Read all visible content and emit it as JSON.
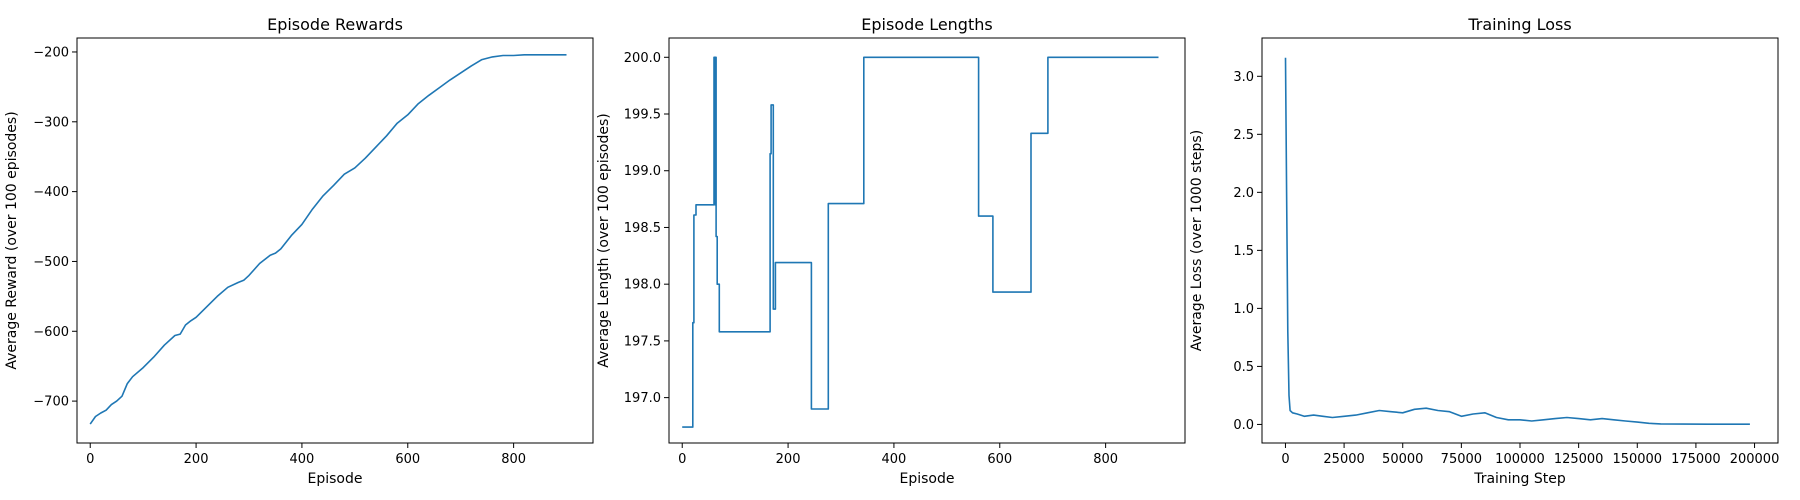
{
  "chart_data": [
    {
      "type": "line",
      "title": "Episode Rewards",
      "xlabel": "Episode",
      "ylabel": "Average Reward (over 100 episodes)",
      "xlim": [
        -25,
        950
      ],
      "ylim": [
        -760,
        -180
      ],
      "xticks": [
        0,
        200,
        400,
        600,
        800
      ],
      "yticks": [
        -700,
        -600,
        -500,
        -400,
        -300,
        -200
      ],
      "xtick_labels": [
        "0",
        "200",
        "400",
        "600",
        "800"
      ],
      "ytick_labels": [
        "−700",
        "−600",
        "−500",
        "−400",
        "−300",
        "−200"
      ],
      "grid": false,
      "color": "#1f77b4",
      "series": [
        {
          "x": [
            0,
            10,
            20,
            30,
            40,
            50,
            60,
            70,
            80,
            100,
            120,
            140,
            160,
            170,
            180,
            190,
            200,
            220,
            240,
            260,
            280,
            290,
            300,
            320,
            340,
            350,
            360,
            380,
            400,
            420,
            440,
            460,
            480,
            500,
            520,
            540,
            560,
            580,
            600,
            620,
            640,
            660,
            680,
            700,
            720,
            740,
            760,
            780,
            800,
            820,
            840,
            860,
            880,
            900
          ],
          "y": [
            -733,
            -722,
            -717,
            -713,
            -705,
            -700,
            -693,
            -675,
            -665,
            -652,
            -637,
            -620,
            -606,
            -604,
            -591,
            -585,
            -580,
            -565,
            -550,
            -537,
            -530,
            -527,
            -520,
            -503,
            -491,
            -488,
            -482,
            -463,
            -447,
            -425,
            -406,
            -391,
            -375,
            -366,
            -352,
            -336,
            -320,
            -302,
            -290,
            -274,
            -262,
            -251,
            -240,
            -230,
            -220,
            -211,
            -207,
            -205,
            -205,
            -204,
            -204,
            -204,
            -204,
            -204
          ]
        }
      ]
    },
    {
      "type": "line",
      "title": "Episode Lengths",
      "xlabel": "Episode",
      "ylabel": "Average Length (over 100 episodes)",
      "xlim": [
        -25,
        950
      ],
      "ylim": [
        196.6,
        200.17
      ],
      "xticks": [
        0,
        200,
        400,
        600,
        800
      ],
      "yticks": [
        197.0,
        197.5,
        198.0,
        198.5,
        199.0,
        199.5,
        200.0
      ],
      "xtick_labels": [
        "0",
        "200",
        "400",
        "600",
        "800"
      ],
      "ytick_labels": [
        "197.0",
        "197.5",
        "198.0",
        "198.5",
        "199.0",
        "199.5",
        "200.0"
      ],
      "grid": false,
      "color": "#1f77b4",
      "series": [
        {
          "x": [
            0,
            20,
            20,
            22,
            22,
            26,
            26,
            60,
            60,
            62,
            62,
            63,
            63,
            64,
            64,
            66,
            66,
            70,
            70,
            166,
            166,
            168,
            168,
            172,
            172,
            176,
            176,
            177,
            177,
            244,
            244,
            276,
            276,
            343,
            343,
            560,
            560,
            587,
            587,
            659,
            659,
            691,
            691,
            900
          ],
          "y": [
            196.74,
            196.74,
            197.66,
            197.66,
            198.61,
            198.61,
            198.7,
            198.7,
            200.0,
            200.0,
            198.7,
            198.7,
            200.0,
            200.0,
            198.42,
            198.42,
            198.0,
            198.0,
            197.58,
            197.58,
            199.15,
            199.15,
            199.58,
            199.58,
            197.78,
            197.78,
            198.19,
            198.19,
            198.19,
            198.19,
            196.9,
            196.9,
            198.71,
            198.71,
            200.0,
            200.0,
            198.6,
            198.6,
            197.93,
            197.93,
            199.33,
            199.33,
            200.0,
            200.0
          ]
        }
      ]
    },
    {
      "type": "line",
      "title": "Training Loss",
      "xlabel": "Training Step",
      "ylabel": "Average Loss (over 1000 steps)",
      "xlim": [
        -10000,
        210000
      ],
      "ylim": [
        -0.16,
        3.33
      ],
      "xticks": [
        0,
        25000,
        50000,
        75000,
        100000,
        125000,
        150000,
        175000,
        200000
      ],
      "yticks": [
        0.0,
        0.5,
        1.0,
        1.5,
        2.0,
        2.5,
        3.0
      ],
      "xtick_labels": [
        "0",
        "25000",
        "50000",
        "75000",
        "100000",
        "125000",
        "150000",
        "175000",
        "200000"
      ],
      "ytick_labels": [
        "0.0",
        "0.5",
        "1.0",
        "1.5",
        "2.0",
        "2.5",
        "3.0"
      ],
      "grid": false,
      "color": "#1f77b4",
      "series": [
        {
          "x": [
            0,
            500,
            1000,
            1500,
            2000,
            3000,
            5000,
            8000,
            12000,
            16000,
            20000,
            25000,
            30000,
            35000,
            40000,
            45000,
            50000,
            55000,
            60000,
            65000,
            70000,
            75000,
            80000,
            85000,
            90000,
            95000,
            100000,
            105000,
            110000,
            115000,
            120000,
            125000,
            130000,
            135000,
            140000,
            145000,
            150000,
            155000,
            160000,
            170000,
            180000,
            190000,
            198000
          ],
          "y": [
            3.16,
            2.0,
            0.8,
            0.25,
            0.12,
            0.1,
            0.09,
            0.07,
            0.08,
            0.07,
            0.06,
            0.07,
            0.08,
            0.1,
            0.12,
            0.11,
            0.1,
            0.13,
            0.14,
            0.12,
            0.11,
            0.07,
            0.09,
            0.1,
            0.06,
            0.04,
            0.04,
            0.03,
            0.04,
            0.05,
            0.06,
            0.05,
            0.04,
            0.05,
            0.04,
            0.03,
            0.02,
            0.01,
            0.005,
            0.003,
            0.002,
            0.002,
            0.002
          ]
        }
      ]
    }
  ]
}
